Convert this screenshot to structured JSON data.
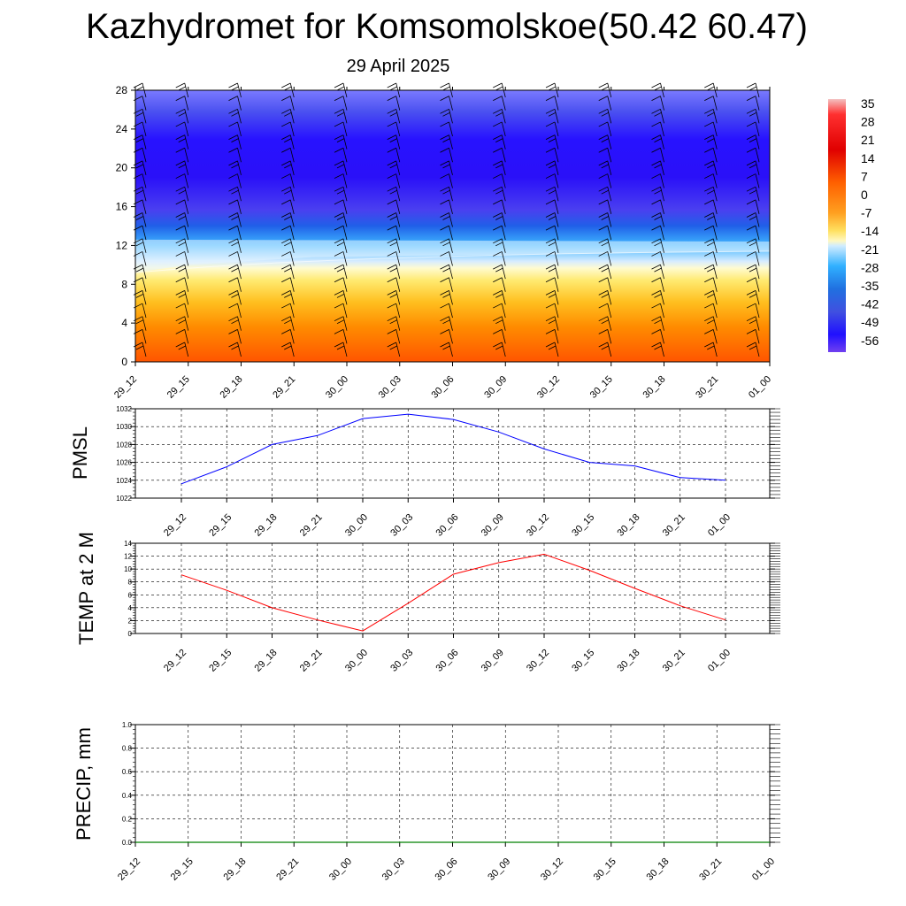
{
  "title": "Kazhydromet for Komsomolskoe(50.42 60.47)",
  "subtitle": "29 April 2025",
  "time_labels": [
    "29_12",
    "29_15",
    "29_18",
    "29_21",
    "30_00",
    "30_03",
    "30_06",
    "30_09",
    "30_12",
    "30_15",
    "30_18",
    "30_21",
    "01_00"
  ],
  "colors": {
    "pmsl_line": "#0000ff",
    "temp_line": "#ff0000",
    "precip_line": "#008000",
    "grid": "#000000"
  },
  "chart_data": [
    {
      "type": "heatmap",
      "name": "vertical cross-section temperature with wind barbs",
      "ylim": [
        0,
        28
      ],
      "yticks": [
        0,
        4,
        8,
        12,
        16,
        20,
        24,
        28
      ],
      "colorbar_labels": [
        "35",
        "28",
        "21",
        "14",
        "7",
        "0",
        "-7",
        "-14",
        "-21",
        "-28",
        "-35",
        "-42",
        "-49",
        "-56"
      ],
      "colorbar_values": [
        35,
        28,
        21,
        14,
        7,
        0,
        -7,
        -14,
        -21,
        -28,
        -35,
        -42,
        -49,
        -56
      ],
      "wind_barbs": true
    },
    {
      "type": "line",
      "ylabel": "PMSL",
      "ylim": [
        1022,
        1032
      ],
      "yticks": [
        1022,
        1024,
        1026,
        1028,
        1030,
        1032
      ],
      "yticklabels": [
        "1022",
        "1024",
        "1026",
        "1028",
        "1030",
        "1032"
      ],
      "grid": true,
      "x": [
        "29_12",
        "29_15",
        "29_18",
        "29_21",
        "30_00",
        "30_03",
        "30_06",
        "30_09",
        "30_12",
        "30_15",
        "30_18",
        "30_21",
        "01_00"
      ],
      "values": [
        1023.6,
        1025.5,
        1028.0,
        1029.0,
        1030.9,
        1031.4,
        1030.8,
        1029.4,
        1027.5,
        1026.0,
        1025.6,
        1024.3,
        1024.0
      ]
    },
    {
      "type": "line",
      "ylabel": "TEMP at 2 M",
      "ylim": [
        0,
        14
      ],
      "yticks": [
        0,
        2,
        4,
        6,
        8,
        10,
        12,
        14
      ],
      "yticklabels": [
        "0",
        "2",
        "4",
        "6",
        "8",
        "10",
        "12",
        "14"
      ],
      "grid": true,
      "x": [
        "29_12",
        "29_15",
        "29_18",
        "29_21",
        "30_00",
        "30_03",
        "30_06",
        "30_09",
        "30_12",
        "30_15",
        "30_18",
        "30_21",
        "01_00"
      ],
      "values": [
        9.1,
        6.7,
        4.0,
        2.1,
        0.4,
        4.7,
        9.2,
        11.0,
        12.3,
        9.8,
        7.0,
        4.3,
        2.1
      ]
    },
    {
      "type": "line",
      "ylabel": "PRECIP, mm",
      "ylim": [
        0.0,
        1.0
      ],
      "yticks": [
        0.0,
        0.2,
        0.4,
        0.6,
        0.8,
        1.0
      ],
      "yticklabels": [
        "0.0",
        "0.2",
        "0.4",
        "0.6",
        "0.8",
        "1.0"
      ],
      "grid": true,
      "x": [
        "29_12",
        "29_15",
        "29_18",
        "29_21",
        "30_00",
        "30_03",
        "30_06",
        "30_09",
        "30_12",
        "30_15",
        "30_18",
        "30_21",
        "01_00"
      ],
      "values": [
        0,
        0,
        0,
        0,
        0,
        0,
        0,
        0,
        0,
        0,
        0,
        0,
        0
      ]
    }
  ]
}
